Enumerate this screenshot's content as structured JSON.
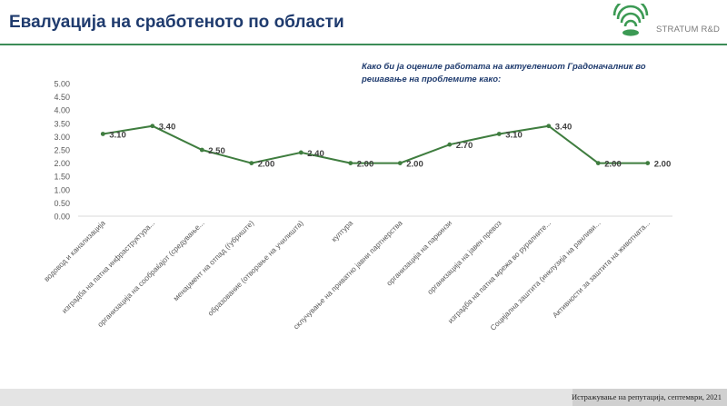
{
  "slide": {
    "title": "Евалуација на сработеното по области",
    "logo_text": "STRATUM R&D",
    "question": "Како би ја оцениле работата на актуелениот Градоначалник во решавање на проблемите како:",
    "footer": "Истражување на репутација, септември, 2021"
  },
  "colors": {
    "title": "#1f3b6e",
    "accent": "#3c8c57",
    "line": "#3f7d3f",
    "label": "#404040"
  },
  "chart_data": {
    "type": "line",
    "title": "",
    "xlabel": "",
    "ylabel": "",
    "ylim": [
      0,
      5
    ],
    "yticks": [
      "5.00",
      "4.50",
      "4.00",
      "3.50",
      "3.00",
      "2.50",
      "2.00",
      "1.50",
      "1.00",
      "0.50",
      "0.00"
    ],
    "grid": false,
    "categories": [
      "водовод и канализација",
      "изградба на патна инфраструктура...",
      "организација на сообраќајот (средување...",
      "менаџмент на отпад (ѓубриште)",
      "образование (отворање на училишта)",
      "култура",
      "склучување на приватно јавни партнерства",
      "организација на паркинзи",
      "организација на јавен превоз",
      "изградба на патна мрежа во руралните...",
      "Социјална заштита (инклузија на ранливи...",
      "Активности за заштита на животната..."
    ],
    "values": [
      3.1,
      3.4,
      2.5,
      2.0,
      2.4,
      2.0,
      2.0,
      2.7,
      3.1,
      3.4,
      2.0,
      2.0
    ],
    "data_labels": [
      "3.10",
      "3.40",
      "2.50",
      "2.00",
      "2.40",
      "2.00",
      "2.00",
      "2.70",
      "3.10",
      "3.40",
      "2.00",
      "2.00"
    ]
  }
}
